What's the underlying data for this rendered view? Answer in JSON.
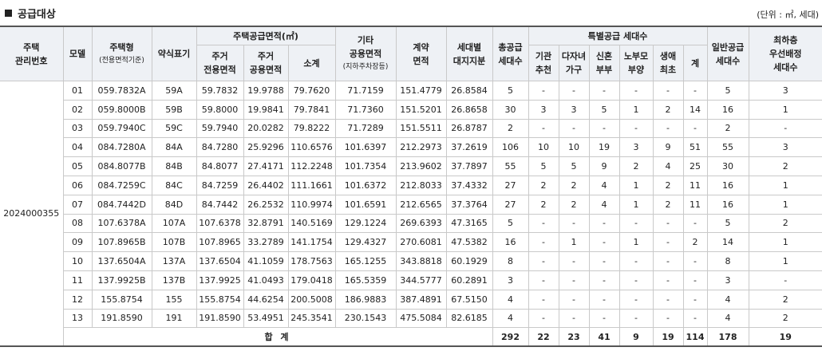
{
  "header": {
    "title": "공급대상",
    "unit": "(단위 : ㎡, 세대)"
  },
  "columns": {
    "mgmt_no": "주택\n관리번호",
    "model": "모델",
    "housing_type": "주택형",
    "housing_type_sub": "(전용면적기준)",
    "abbr": "약식표기",
    "supply_area": "주택공급면적(㎡)",
    "exclusive": "주거\n전용면적",
    "common": "주거\n공용면적",
    "subtotal": "소계",
    "other_common": "기타\n공용면적",
    "other_common_sub": "(지하주차장등)",
    "contract_area": "계약\n면적",
    "land_share": "세대별\n대지지분",
    "total_supply": "총공급\n세대수",
    "special": "특별공급 세대수",
    "sp_inst": "기관\n추천",
    "sp_multi": "다자녀\n가구",
    "sp_newlywed": "신혼\n부부",
    "sp_parents": "노부모\n부양",
    "sp_first": "생애\n최초",
    "sp_sum": "계",
    "general": "일반공급\n세대수",
    "lowest_floor": "최하층\n우선배정\n세대수"
  },
  "management_number": "2024000355",
  "rows": [
    {
      "model": "01",
      "type": "059.7832A",
      "abbr": "59A",
      "excl": "59.7832",
      "comm": "19.9788",
      "sub": "79.7620",
      "other": "71.7159",
      "contract": "151.4779",
      "land": "26.8584",
      "total": "5",
      "inst": "-",
      "multi": "-",
      "newly": "-",
      "parents": "-",
      "first": "-",
      "spsum": "-",
      "general": "5",
      "lowest": "3"
    },
    {
      "model": "02",
      "type": "059.8000B",
      "abbr": "59B",
      "excl": "59.8000",
      "comm": "19.9841",
      "sub": "79.7841",
      "other": "71.7360",
      "contract": "151.5201",
      "land": "26.8658",
      "total": "30",
      "inst": "3",
      "multi": "3",
      "newly": "5",
      "parents": "1",
      "first": "2",
      "spsum": "14",
      "general": "16",
      "lowest": "1"
    },
    {
      "model": "03",
      "type": "059.7940C",
      "abbr": "59C",
      "excl": "59.7940",
      "comm": "20.0282",
      "sub": "79.8222",
      "other": "71.7289",
      "contract": "151.5511",
      "land": "26.8787",
      "total": "2",
      "inst": "-",
      "multi": "-",
      "newly": "-",
      "parents": "-",
      "first": "-",
      "spsum": "-",
      "general": "2",
      "lowest": "-"
    },
    {
      "model": "04",
      "type": "084.7280A",
      "abbr": "84A",
      "excl": "84.7280",
      "comm": "25.9296",
      "sub": "110.6576",
      "other": "101.6397",
      "contract": "212.2973",
      "land": "37.2619",
      "total": "106",
      "inst": "10",
      "multi": "10",
      "newly": "19",
      "parents": "3",
      "first": "9",
      "spsum": "51",
      "general": "55",
      "lowest": "3"
    },
    {
      "model": "05",
      "type": "084.8077B",
      "abbr": "84B",
      "excl": "84.8077",
      "comm": "27.4171",
      "sub": "112.2248",
      "other": "101.7354",
      "contract": "213.9602",
      "land": "37.7897",
      "total": "55",
      "inst": "5",
      "multi": "5",
      "newly": "9",
      "parents": "2",
      "first": "4",
      "spsum": "25",
      "general": "30",
      "lowest": "2"
    },
    {
      "model": "06",
      "type": "084.7259C",
      "abbr": "84C",
      "excl": "84.7259",
      "comm": "26.4402",
      "sub": "111.1661",
      "other": "101.6372",
      "contract": "212.8033",
      "land": "37.4332",
      "total": "27",
      "inst": "2",
      "multi": "2",
      "newly": "4",
      "parents": "1",
      "first": "2",
      "spsum": "11",
      "general": "16",
      "lowest": "1"
    },
    {
      "model": "07",
      "type": "084.7442D",
      "abbr": "84D",
      "excl": "84.7442",
      "comm": "26.2532",
      "sub": "110.9974",
      "other": "101.6591",
      "contract": "212.6565",
      "land": "37.3764",
      "total": "27",
      "inst": "2",
      "multi": "2",
      "newly": "4",
      "parents": "1",
      "first": "2",
      "spsum": "11",
      "general": "16",
      "lowest": "1"
    },
    {
      "model": "08",
      "type": "107.6378A",
      "abbr": "107A",
      "excl": "107.6378",
      "comm": "32.8791",
      "sub": "140.5169",
      "other": "129.1224",
      "contract": "269.6393",
      "land": "47.3165",
      "total": "5",
      "inst": "-",
      "multi": "-",
      "newly": "-",
      "parents": "-",
      "first": "-",
      "spsum": "-",
      "general": "5",
      "lowest": "2"
    },
    {
      "model": "09",
      "type": "107.8965B",
      "abbr": "107B",
      "excl": "107.8965",
      "comm": "33.2789",
      "sub": "141.1754",
      "other": "129.4327",
      "contract": "270.6081",
      "land": "47.5382",
      "total": "16",
      "inst": "-",
      "multi": "1",
      "newly": "-",
      "parents": "1",
      "first": "-",
      "spsum": "2",
      "general": "14",
      "lowest": "1"
    },
    {
      "model": "10",
      "type": "137.6504A",
      "abbr": "137A",
      "excl": "137.6504",
      "comm": "41.1059",
      "sub": "178.7563",
      "other": "165.1255",
      "contract": "343.8818",
      "land": "60.1929",
      "total": "8",
      "inst": "-",
      "multi": "-",
      "newly": "-",
      "parents": "-",
      "first": "-",
      "spsum": "-",
      "general": "8",
      "lowest": "1"
    },
    {
      "model": "11",
      "type": "137.9925B",
      "abbr": "137B",
      "excl": "137.9925",
      "comm": "41.0493",
      "sub": "179.0418",
      "other": "165.5359",
      "contract": "344.5777",
      "land": "60.2891",
      "total": "3",
      "inst": "-",
      "multi": "-",
      "newly": "-",
      "parents": "-",
      "first": "-",
      "spsum": "-",
      "general": "3",
      "lowest": "-"
    },
    {
      "model": "12",
      "type": "155.8754",
      "abbr": "155",
      "excl": "155.8754",
      "comm": "44.6254",
      "sub": "200.5008",
      "other": "186.9883",
      "contract": "387.4891",
      "land": "67.5150",
      "total": "4",
      "inst": "-",
      "multi": "-",
      "newly": "-",
      "parents": "-",
      "first": "-",
      "spsum": "-",
      "general": "4",
      "lowest": "2"
    },
    {
      "model": "13",
      "type": "191.8590",
      "abbr": "191",
      "excl": "191.8590",
      "comm": "53.4951",
      "sub": "245.3541",
      "other": "230.1543",
      "contract": "475.5084",
      "land": "82.6185",
      "total": "4",
      "inst": "-",
      "multi": "-",
      "newly": "-",
      "parents": "-",
      "first": "-",
      "spsum": "-",
      "general": "4",
      "lowest": "2"
    }
  ],
  "totals": {
    "label": "합 계",
    "total": "292",
    "inst": "22",
    "multi": "23",
    "newly": "41",
    "parents": "9",
    "first": "19",
    "spsum": "114",
    "general": "178",
    "lowest": "19"
  }
}
